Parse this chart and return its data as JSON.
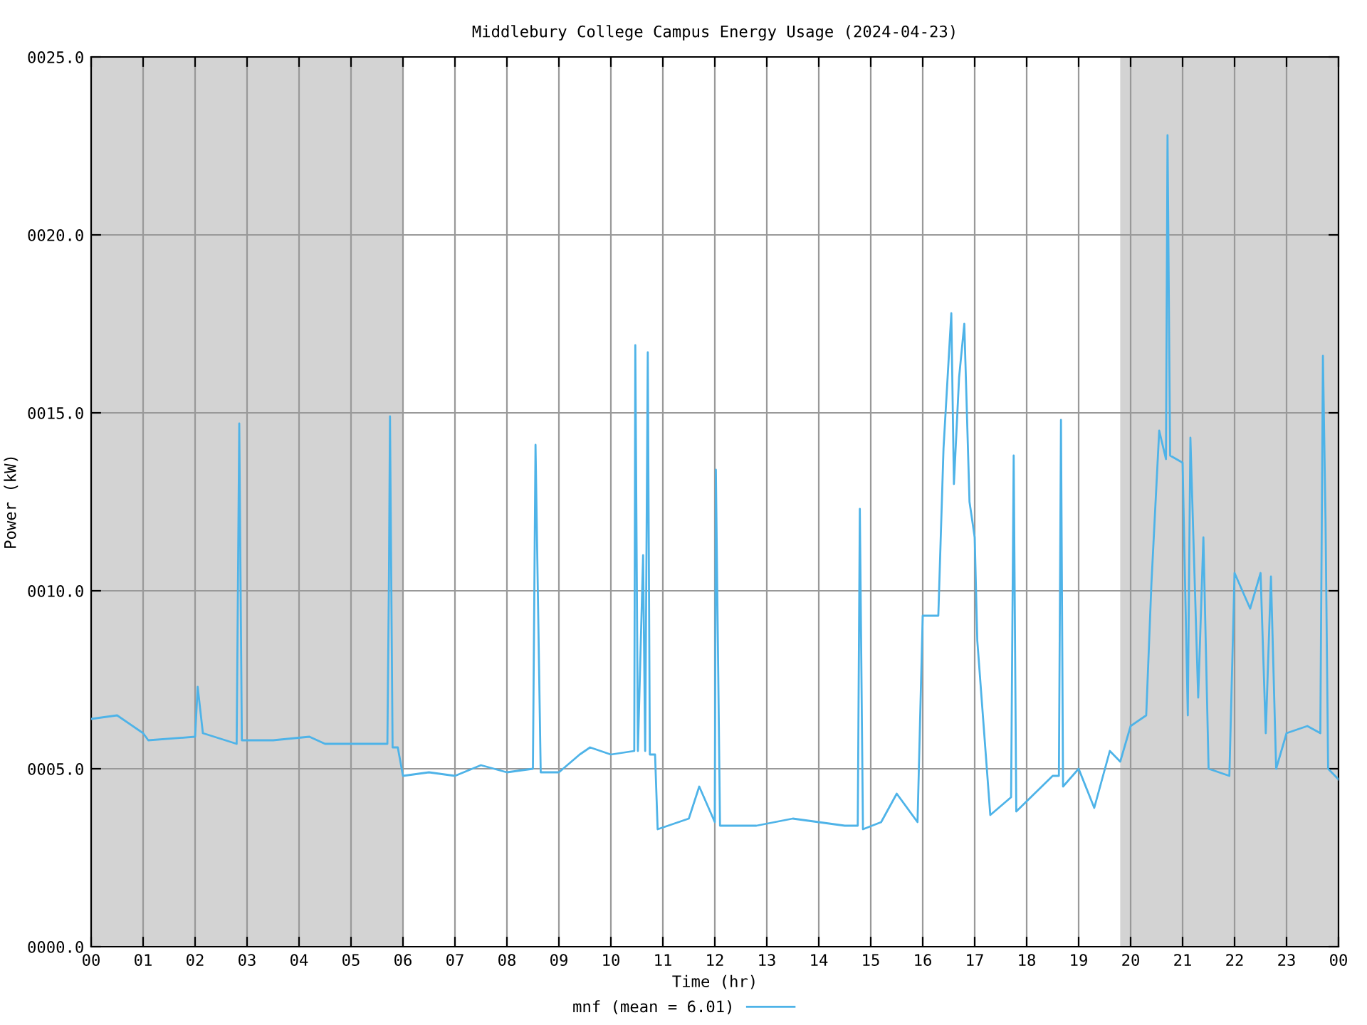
{
  "chart_data": {
    "type": "line",
    "title": "Middlebury College Campus Energy Usage (2024-04-23)",
    "xlabel": "Time (hr)",
    "ylabel": "Power (kW)",
    "xlim": [
      0,
      24
    ],
    "ylim": [
      0,
      25
    ],
    "xticks": [
      {
        "value": 0,
        "label": "00"
      },
      {
        "value": 1,
        "label": "01"
      },
      {
        "value": 2,
        "label": "02"
      },
      {
        "value": 3,
        "label": "03"
      },
      {
        "value": 4,
        "label": "04"
      },
      {
        "value": 5,
        "label": "05"
      },
      {
        "value": 6,
        "label": "06"
      },
      {
        "value": 7,
        "label": "07"
      },
      {
        "value": 8,
        "label": "08"
      },
      {
        "value": 9,
        "label": "09"
      },
      {
        "value": 10,
        "label": "10"
      },
      {
        "value": 11,
        "label": "11"
      },
      {
        "value": 12,
        "label": "12"
      },
      {
        "value": 13,
        "label": "13"
      },
      {
        "value": 14,
        "label": "14"
      },
      {
        "value": 15,
        "label": "15"
      },
      {
        "value": 16,
        "label": "16"
      },
      {
        "value": 17,
        "label": "17"
      },
      {
        "value": 18,
        "label": "18"
      },
      {
        "value": 19,
        "label": "19"
      },
      {
        "value": 20,
        "label": "20"
      },
      {
        "value": 21,
        "label": "21"
      },
      {
        "value": 22,
        "label": "22"
      },
      {
        "value": 23,
        "label": "23"
      },
      {
        "value": 24,
        "label": "00"
      }
    ],
    "yticks": [
      {
        "value": 0,
        "label": "0000.0"
      },
      {
        "value": 5,
        "label": "0005.0"
      },
      {
        "value": 10,
        "label": "0010.0"
      },
      {
        "value": 15,
        "label": "0015.0"
      },
      {
        "value": 20,
        "label": "0020.0"
      },
      {
        "value": 25,
        "label": "0025.0"
      }
    ],
    "grid": true,
    "legend": "bottom",
    "marker": "none",
    "line_style": "solid",
    "bands": [
      {
        "axis": "x",
        "from": 0,
        "to": 6,
        "color": "#d3d3d3"
      },
      {
        "axis": "x",
        "from": 19.8,
        "to": 24,
        "color": "#d3d3d3"
      }
    ],
    "series": [
      {
        "name": "mnf (mean = 6.01)",
        "color": "#4eb3e8",
        "x": [
          0.0,
          0.5,
          1.0,
          1.1,
          2.0,
          2.05,
          2.15,
          2.8,
          2.85,
          2.9,
          3.5,
          4.2,
          4.5,
          5.0,
          5.7,
          5.73,
          5.75,
          5.8,
          5.9,
          6.0,
          6.5,
          7.0,
          7.5,
          8.0,
          8.5,
          8.55,
          8.65,
          9.0,
          9.4,
          9.6,
          10.0,
          10.45,
          10.47,
          10.52,
          10.62,
          10.66,
          10.71,
          10.75,
          10.85,
          10.9,
          11.5,
          11.7,
          12.0,
          12.02,
          12.1,
          12.8,
          13.5,
          14.5,
          14.75,
          14.79,
          14.85,
          15.2,
          15.5,
          15.9,
          16.0,
          16.3,
          16.4,
          16.55,
          16.6,
          16.7,
          16.8,
          16.9,
          17.0,
          17.05,
          17.3,
          17.7,
          17.75,
          17.8,
          18.5,
          18.62,
          18.66,
          18.7,
          19.0,
          19.3,
          19.6,
          19.8,
          20.0,
          20.3,
          20.4,
          20.55,
          20.68,
          20.71,
          20.76,
          21.0,
          21.1,
          21.15,
          21.3,
          21.4,
          21.5,
          21.9,
          22.0,
          22.3,
          22.5,
          22.6,
          22.7,
          22.8,
          23.0,
          23.4,
          23.65,
          23.7,
          23.75,
          23.8,
          24.0
        ],
        "values": [
          6.4,
          6.5,
          6.0,
          5.8,
          5.9,
          7.3,
          6.0,
          5.7,
          14.7,
          5.8,
          5.8,
          5.9,
          5.7,
          5.7,
          5.7,
          10.4,
          14.9,
          5.6,
          5.6,
          4.8,
          4.9,
          4.8,
          5.1,
          4.9,
          5.0,
          14.1,
          4.9,
          4.9,
          5.4,
          5.6,
          5.4,
          5.5,
          16.9,
          5.5,
          11.0,
          5.5,
          16.7,
          5.4,
          5.4,
          3.3,
          3.6,
          4.5,
          3.5,
          13.4,
          3.4,
          3.4,
          3.6,
          3.4,
          3.4,
          12.3,
          3.3,
          3.5,
          4.3,
          3.5,
          9.3,
          9.3,
          14.0,
          17.8,
          13.0,
          16.0,
          17.5,
          12.5,
          11.5,
          8.6,
          3.7,
          4.2,
          13.8,
          3.8,
          4.8,
          4.8,
          14.8,
          4.5,
          5.0,
          3.9,
          5.5,
          5.2,
          6.2,
          6.5,
          10.2,
          14.5,
          13.7,
          22.8,
          13.8,
          13.6,
          6.5,
          14.3,
          7.0,
          11.5,
          5.0,
          4.8,
          10.5,
          9.5,
          10.5,
          6.0,
          10.4,
          5.0,
          6.0,
          6.2,
          6.0,
          16.6,
          12.0,
          5.0,
          4.7
        ]
      }
    ]
  }
}
